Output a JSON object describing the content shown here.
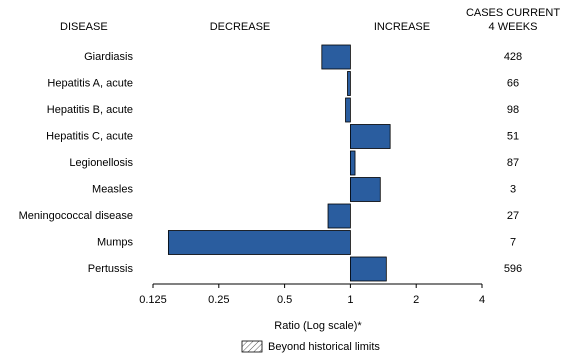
{
  "chart_data": {
    "type": "bar",
    "orientation": "horizontal",
    "log_scale": true,
    "headers": {
      "disease": "DISEASE",
      "decrease": "DECREASE",
      "increase": "INCREASE",
      "cases": [
        "CASES CURRENT",
        "4 WEEKS"
      ]
    },
    "categories": [
      "Giardiasis",
      "Hepatitis A, acute",
      "Hepatitis B, acute",
      "Hepatitis C, acute",
      "Legionellosis",
      "Measles",
      "Meningococcal disease",
      "Mumps",
      "Pertussis"
    ],
    "values": [
      0.74,
      0.97,
      0.95,
      1.52,
      1.05,
      1.37,
      0.79,
      0.147,
      1.46
    ],
    "case_counts": [
      428,
      66,
      98,
      51,
      87,
      3,
      27,
      7,
      596
    ],
    "color": "#2a5d9f",
    "xlim": [
      0.125,
      4
    ],
    "xticks": [
      0.125,
      0.25,
      0.5,
      1,
      2,
      4
    ],
    "base": 1,
    "xlabel": "Ratio (Log scale)*",
    "legend_label": "Beyond historical limits"
  }
}
